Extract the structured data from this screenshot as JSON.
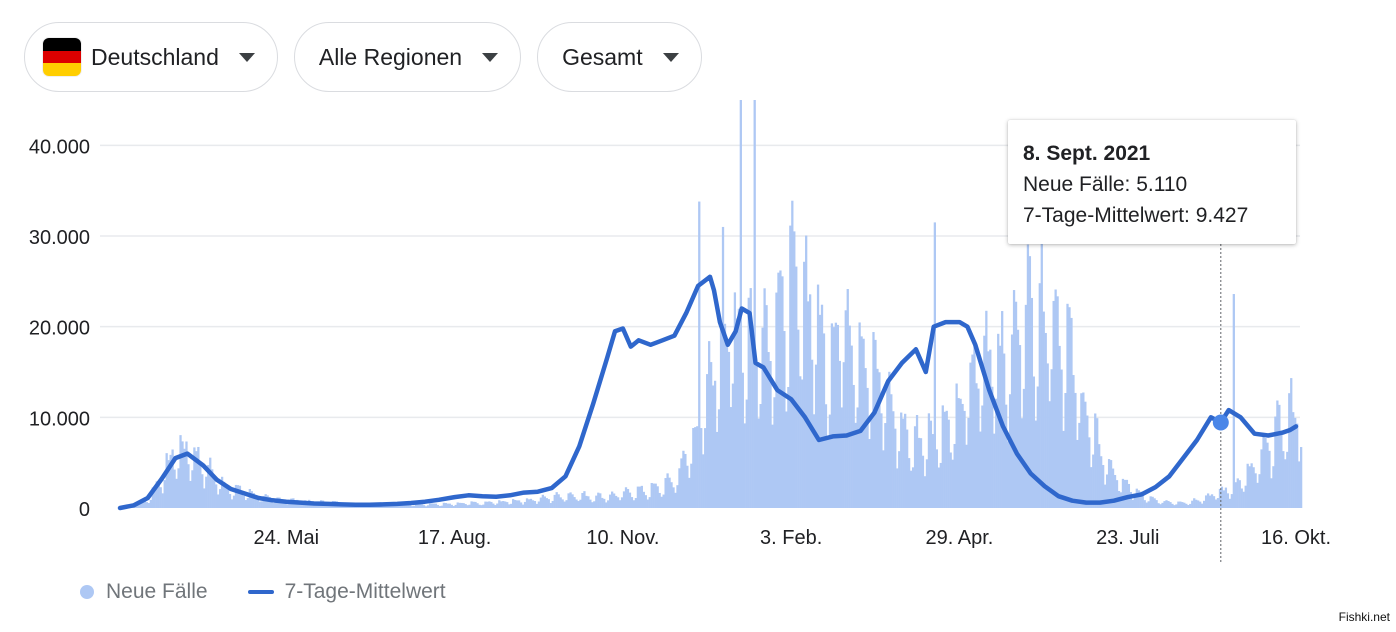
{
  "filters": {
    "country": "Deutschland",
    "region": "Alle Regionen",
    "measure": "Gesamt"
  },
  "colors": {
    "bars": "#aec8f4",
    "line": "#2f67cc",
    "grid": "#e8eaed",
    "flag_black": "#000000",
    "flag_red": "#dd0000",
    "flag_gold": "#ffce00"
  },
  "tooltip": {
    "date": "8. Sept. 2021",
    "new_cases_line": "Neue Fälle: 5.110",
    "avg_line": "7-Tage-Mittelwert: 9.427"
  },
  "legend": {
    "bars_label": "Neue Fälle",
    "line_label": "7-Tage-Mittelwert"
  },
  "watermark": "Fishki.net",
  "chart_data": {
    "type": "bar",
    "x_start": "2020-03-01",
    "x_end": "2021-10-18",
    "ylim": [
      0,
      45000
    ],
    "y_ticks": [
      0,
      10000,
      20000,
      30000,
      40000
    ],
    "y_tick_labels": [
      "0",
      "10.000",
      "20.000",
      "30.000",
      "40.000"
    ],
    "x_ticks": [
      {
        "date": "2020-05-24",
        "label": "24. Mai"
      },
      {
        "date": "2020-08-17",
        "label": "17. Aug."
      },
      {
        "date": "2020-11-10",
        "label": "10. Nov."
      },
      {
        "date": "2021-02-03",
        "label": "3. Feb."
      },
      {
        "date": "2021-04-29",
        "label": "29. Apr."
      },
      {
        "date": "2021-07-23",
        "label": "23. Juli"
      },
      {
        "date": "2021-10-16",
        "label": "16. Okt."
      }
    ],
    "grid": true,
    "legend_position": "bottom-left",
    "highlight": {
      "date": "2021-09-08",
      "new_cases": 5110,
      "avg": 9427
    },
    "series": [
      {
        "name": "Neue Fälle",
        "kind": "bar",
        "weekly_avg": [
          200,
          300,
          1000,
          3400,
          6000,
          5900,
          4500,
          2800,
          2000,
          1600,
          1200,
          900,
          800,
          700,
          600,
          600,
          500,
          400,
          400,
          500,
          500,
          400,
          400,
          400,
          400,
          500,
          500,
          600,
          700,
          800,
          900,
          1100,
          1300,
          1300,
          1200,
          1200,
          1400,
          1700,
          1800,
          2200,
          3000,
          6000,
          10000,
          16000,
          18500,
          18000,
          18000,
          19000,
          21500,
          23500,
          20000,
          15500,
          20000,
          18000,
          14000,
          12500,
          9000,
          7000,
          7500,
          8000,
          8500,
          12000,
          15000,
          17000,
          14500,
          20500,
          20500,
          21000,
          18000,
          13000,
          8000,
          5000,
          3000,
          1800,
          1000,
          700,
          600,
          600,
          1000,
          1500,
          2000,
          3000,
          4500,
          7000,
          9000,
          10500,
          10800,
          9800,
          8300,
          8000,
          8500,
          8700
        ],
        "peak_days": [
          {
            "date": "2020-12-18",
            "value": 33800
          },
          {
            "date": "2020-12-30",
            "value": 31000
          },
          {
            "date": "2021-01-08",
            "value": 45300
          },
          {
            "date": "2021-01-15",
            "value": 45100
          },
          {
            "date": "2021-04-16",
            "value": 31500
          },
          {
            "date": "2021-09-14",
            "value": 23600
          }
        ]
      },
      {
        "name": "7-Tage-Mittelwert",
        "kind": "line",
        "points": [
          [
            "2020-03-01",
            0
          ],
          [
            "2020-03-08",
            300
          ],
          [
            "2020-03-15",
            1100
          ],
          [
            "2020-03-22",
            3200
          ],
          [
            "2020-03-29",
            5500
          ],
          [
            "2020-04-04",
            6000
          ],
          [
            "2020-04-12",
            4700
          ],
          [
            "2020-04-19",
            3100
          ],
          [
            "2020-04-26",
            2100
          ],
          [
            "2020-05-03",
            1600
          ],
          [
            "2020-05-10",
            1100
          ],
          [
            "2020-05-17",
            850
          ],
          [
            "2020-05-24",
            700
          ],
          [
            "2020-05-31",
            600
          ],
          [
            "2020-06-07",
            500
          ],
          [
            "2020-06-14",
            450
          ],
          [
            "2020-06-21",
            400
          ],
          [
            "2020-06-28",
            350
          ],
          [
            "2020-07-05",
            350
          ],
          [
            "2020-07-12",
            400
          ],
          [
            "2020-07-19",
            450
          ],
          [
            "2020-07-26",
            550
          ],
          [
            "2020-08-02",
            700
          ],
          [
            "2020-08-09",
            900
          ],
          [
            "2020-08-17",
            1200
          ],
          [
            "2020-08-24",
            1400
          ],
          [
            "2020-08-31",
            1300
          ],
          [
            "2020-09-07",
            1250
          ],
          [
            "2020-09-14",
            1400
          ],
          [
            "2020-09-21",
            1700
          ],
          [
            "2020-09-28",
            1800
          ],
          [
            "2020-10-05",
            2200
          ],
          [
            "2020-10-12",
            3500
          ],
          [
            "2020-10-19",
            6800
          ],
          [
            "2020-10-26",
            11500
          ],
          [
            "2020-11-02",
            16500
          ],
          [
            "2020-11-06",
            19500
          ],
          [
            "2020-11-10",
            19800
          ],
          [
            "2020-11-14",
            17800
          ],
          [
            "2020-11-18",
            18500
          ],
          [
            "2020-11-24",
            18000
          ],
          [
            "2020-11-30",
            18500
          ],
          [
            "2020-12-06",
            19000
          ],
          [
            "2020-12-12",
            21500
          ],
          [
            "2020-12-18",
            24500
          ],
          [
            "2020-12-24",
            25500
          ],
          [
            "2020-12-26",
            24000
          ],
          [
            "2020-12-29",
            20500
          ],
          [
            "2021-01-02",
            18000
          ],
          [
            "2021-01-06",
            19500
          ],
          [
            "2021-01-09",
            22000
          ],
          [
            "2021-01-13",
            21500
          ],
          [
            "2021-01-16",
            16000
          ],
          [
            "2021-01-20",
            15500
          ],
          [
            "2021-01-27",
            13000
          ],
          [
            "2021-02-03",
            12000
          ],
          [
            "2021-02-10",
            10000
          ],
          [
            "2021-02-17",
            7500
          ],
          [
            "2021-02-24",
            7900
          ],
          [
            "2021-03-03",
            8000
          ],
          [
            "2021-03-10",
            8500
          ],
          [
            "2021-03-17",
            10500
          ],
          [
            "2021-03-24",
            14000
          ],
          [
            "2021-03-31",
            16000
          ],
          [
            "2021-04-07",
            17500
          ],
          [
            "2021-04-12",
            15000
          ],
          [
            "2021-04-16",
            20000
          ],
          [
            "2021-04-22",
            20500
          ],
          [
            "2021-04-29",
            20500
          ],
          [
            "2021-05-03",
            20000
          ],
          [
            "2021-05-07",
            18000
          ],
          [
            "2021-05-14",
            13000
          ],
          [
            "2021-05-21",
            9000
          ],
          [
            "2021-05-28",
            6000
          ],
          [
            "2021-06-04",
            3800
          ],
          [
            "2021-06-11",
            2400
          ],
          [
            "2021-06-18",
            1300
          ],
          [
            "2021-06-25",
            800
          ],
          [
            "2021-07-02",
            600
          ],
          [
            "2021-07-09",
            600
          ],
          [
            "2021-07-16",
            800
          ],
          [
            "2021-07-23",
            1200
          ],
          [
            "2021-07-30",
            1500
          ],
          [
            "2021-08-06",
            2300
          ],
          [
            "2021-08-13",
            3500
          ],
          [
            "2021-08-20",
            5500
          ],
          [
            "2021-08-27",
            7500
          ],
          [
            "2021-09-03",
            10000
          ],
          [
            "2021-09-08",
            9427
          ],
          [
            "2021-09-12",
            10800
          ],
          [
            "2021-09-18",
            10000
          ],
          [
            "2021-09-25",
            8200
          ],
          [
            "2021-10-02",
            8000
          ],
          [
            "2021-10-09",
            8300
          ],
          [
            "2021-10-13",
            8600
          ],
          [
            "2021-10-16",
            9000
          ]
        ]
      }
    ]
  }
}
